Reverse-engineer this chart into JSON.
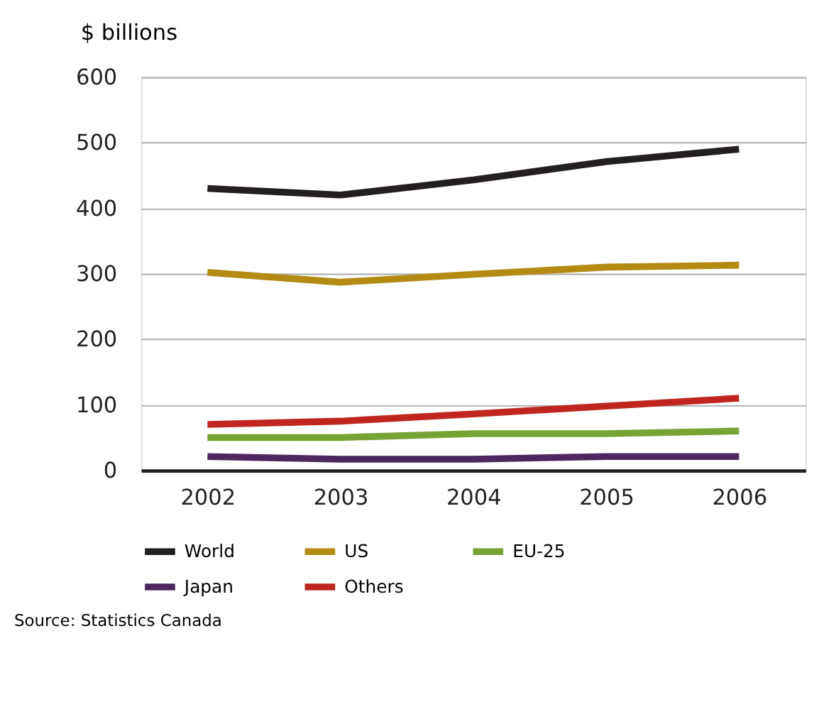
{
  "chart_data": {
    "type": "line",
    "ylabel": "$ billions",
    "categories": [
      "2002",
      "2003",
      "2004",
      "2005",
      "2006"
    ],
    "series": [
      {
        "name": "World",
        "color": "#231f20",
        "values": [
          430,
          420,
          443,
          471,
          490
        ]
      },
      {
        "name": "US",
        "color": "#b38b12",
        "values": [
          302,
          287,
          299,
          310,
          313
        ]
      },
      {
        "name": "EU-25",
        "color": "#76a333",
        "values": [
          50,
          50,
          56,
          56,
          60
        ]
      },
      {
        "name": "Japan",
        "color": "#4d2760",
        "values": [
          21,
          17,
          17,
          21,
          21
        ]
      },
      {
        "name": "Others",
        "color": "#c0261f",
        "values": [
          70,
          75,
          86,
          98,
          110
        ]
      }
    ],
    "ylim": [
      0,
      600
    ],
    "yticks": [
      0,
      100,
      200,
      300,
      400,
      500,
      600
    ],
    "grid": "y",
    "legend": "bottom",
    "marker": "none",
    "line_style": "solid",
    "annotations": [
      "Source: Statistics Canada"
    ]
  }
}
